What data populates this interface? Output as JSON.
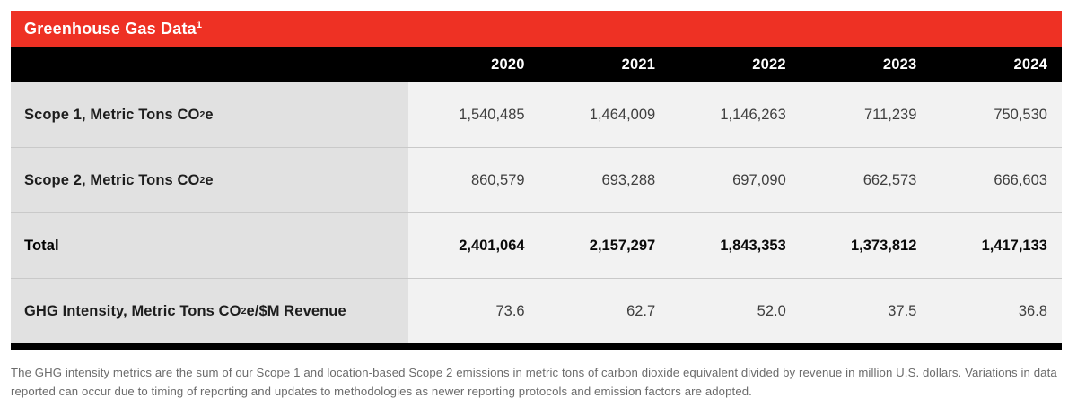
{
  "table": {
    "title": "Greenhouse Gas Data",
    "title_superscript": "1",
    "years": [
      "2020",
      "2021",
      "2022",
      "2023",
      "2024"
    ],
    "rows": [
      {
        "label_prefix": "Scope 1, Metric Tons CO",
        "label_sub": "2",
        "label_suffix": "e",
        "values": [
          "1,540,485",
          "1,464,009",
          "1,146,263",
          "711,239",
          "750,530"
        ]
      },
      {
        "label_prefix": "Scope 2, Metric Tons CO",
        "label_sub": "2",
        "label_suffix": "e",
        "values": [
          "860,579",
          "693,288",
          "697,090",
          "662,573",
          "666,603"
        ]
      },
      {
        "label_prefix": "Total",
        "label_sub": "",
        "label_suffix": "",
        "values": [
          "2,401,064",
          "2,157,297",
          "1,843,353",
          "1,373,812",
          "1,417,133"
        ]
      },
      {
        "label_prefix": "GHG Intensity, Metric Tons CO",
        "label_sub": "2",
        "label_suffix": "e/$M Revenue",
        "values": [
          "73.6",
          "62.7",
          "52.0",
          "37.5",
          "36.8"
        ]
      }
    ]
  },
  "footnote": "The GHG intensity metrics are the sum of our Scope 1 and location-based Scope 2 emissions in metric tons of carbon dioxide equivalent divided by revenue in million U.S. dollars. Variations in data reported can occur due to timing of reporting and updates to methodologies as newer reporting protocols and emission factors are adopted.",
  "colors": {
    "accent_red": "#ee3124",
    "header_black": "#000000",
    "label_column_bg": "#e1e1e1",
    "value_area_bg": "#f2f2f2"
  },
  "chart_data": {
    "type": "table",
    "title": "Greenhouse Gas Data",
    "columns": [
      "2020",
      "2021",
      "2022",
      "2023",
      "2024"
    ],
    "series": [
      {
        "name": "Scope 1, Metric Tons CO2e",
        "values": [
          1540485,
          1464009,
          1146263,
          711239,
          750530
        ]
      },
      {
        "name": "Scope 2, Metric Tons CO2e",
        "values": [
          860579,
          693288,
          697090,
          662573,
          666603
        ]
      },
      {
        "name": "Total",
        "values": [
          2401064,
          2157297,
          1843353,
          1373812,
          1417133
        ]
      },
      {
        "name": "GHG Intensity, Metric Tons CO2e/$M Revenue",
        "values": [
          73.6,
          62.7,
          52.0,
          37.5,
          36.8
        ]
      }
    ]
  }
}
